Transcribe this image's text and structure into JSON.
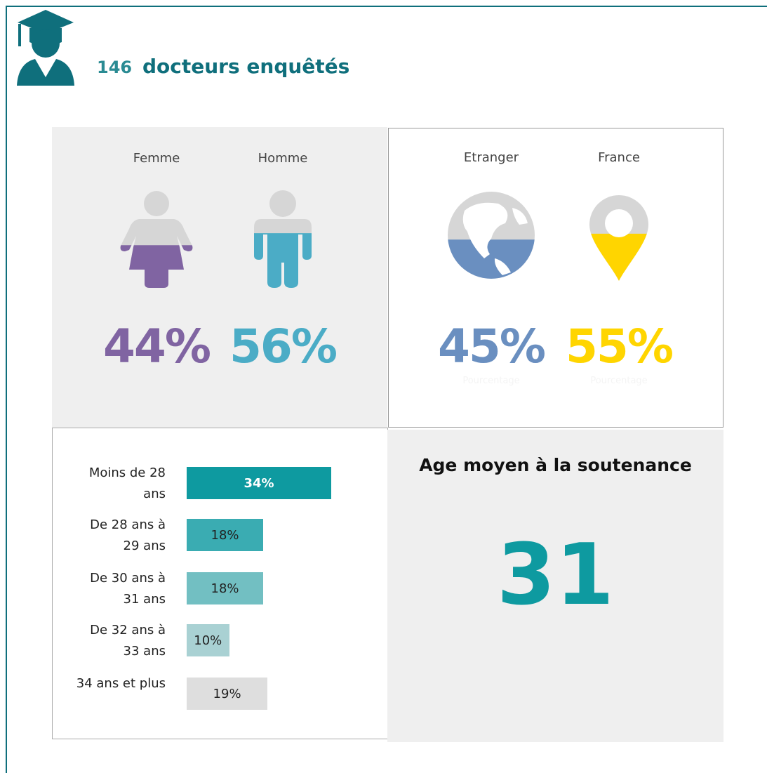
{
  "header": {
    "count": 146,
    "title": "docteurs enquêtés"
  },
  "gender": {
    "categories": [
      "Femme",
      "Homme"
    ],
    "values": [
      44,
      56
    ],
    "value_labels": [
      "44%",
      "56%"
    ],
    "colors": [
      "#8064a2",
      "#4bacc6"
    ]
  },
  "origin": {
    "categories": [
      "Etranger",
      "France"
    ],
    "values": [
      45,
      55
    ],
    "value_labels": [
      "45%",
      "55%"
    ],
    "colors": [
      "#6a8fc0",
      "#ffd500"
    ],
    "caption": "Pourcentage"
  },
  "chart_data": {
    "type": "bar",
    "orientation": "horizontal",
    "categories": [
      "Moins de 28 ans",
      "De 28 ans à 29 ans",
      "De 30 ans à 31 ans",
      "De 32 ans à 33 ans",
      "34 ans et plus"
    ],
    "values": [
      34,
      18,
      18,
      10,
      19
    ],
    "value_labels": [
      "34%",
      "18%",
      "18%",
      "10%",
      "19%"
    ],
    "colors": [
      "#0e9aa0",
      "#3aacb2",
      "#72bfc2",
      "#a9d1d3",
      "#dedede"
    ]
  },
  "average_age": {
    "title": "Age moyen à la soutenance",
    "value": 31
  }
}
